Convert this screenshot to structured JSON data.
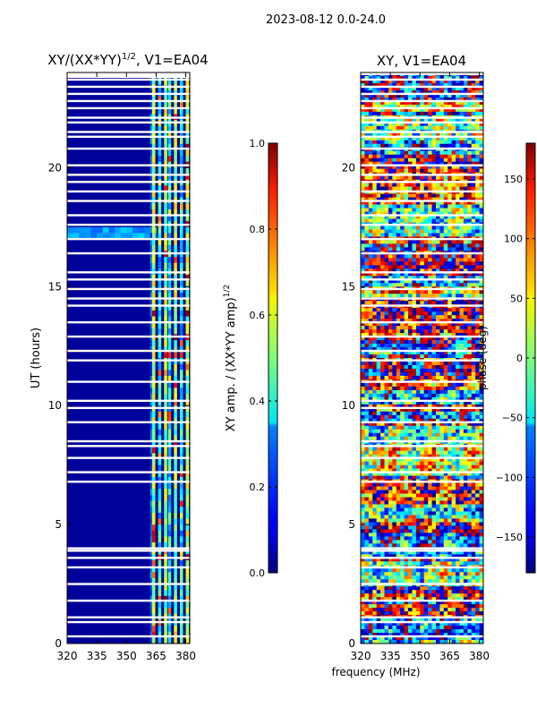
{
  "suptitle": "2023-08-12 0.0-24.0",
  "chart_data": [
    {
      "type": "heatmap",
      "title_main": "XY/(XX*YY)",
      "title_sup": "1/2",
      "title_tail": ", V1=EA04",
      "ylabel": "UT (hours)",
      "xlim": [
        320,
        382
      ],
      "ylim": [
        0,
        24
      ],
      "xticks": [
        320,
        335,
        350,
        365,
        380
      ],
      "yticks": [
        0,
        5,
        10,
        15,
        20
      ],
      "bright_channels": [
        363,
        366,
        369,
        371,
        374,
        377,
        380
      ],
      "gap_rows_hours": [
        0.3,
        0.9,
        1.1,
        1.8,
        2.5,
        3.2,
        3.6,
        3.9,
        4.0,
        6.8,
        7.2,
        7.8,
        8.3,
        8.5,
        9.3,
        9.9,
        10.2,
        11.0,
        11.9,
        12.3,
        12.9,
        13.5,
        14.2,
        14.5,
        14.9,
        15.3,
        15.6,
        16.4,
        17.0,
        17.6,
        18.0,
        18.6,
        19.0,
        19.4,
        19.7,
        20.1,
        20.8,
        21.3,
        21.5,
        21.9,
        22.1,
        22.5,
        22.8,
        23.1,
        23.4,
        23.7
      ],
      "colorbar": {
        "label_main": "XY amp. / (XX*YY amp)",
        "label_sup": "1/2",
        "min": 0.0,
        "max": 1.0,
        "ticks": [
          0.0,
          0.2,
          0.4,
          0.6,
          0.8,
          1.0
        ],
        "tick_labels": [
          "0.0",
          "0.2",
          "0.4",
          "0.6",
          "0.8",
          "1.0"
        ]
      }
    },
    {
      "type": "heatmap",
      "title": "XY, V1=EA04",
      "xlabel": "frequency (MHz)",
      "xlim": [
        320,
        382
      ],
      "ylim": [
        0,
        24
      ],
      "xticks": [
        320,
        335,
        350,
        365,
        380
      ],
      "yticks": [
        0,
        5,
        10,
        15,
        20
      ],
      "colorbar": {
        "label": "phase (deg)",
        "min": -180,
        "max": 180,
        "ticks": [
          -150,
          -100,
          -50,
          0,
          50,
          100,
          150
        ],
        "tick_labels": [
          "−150",
          "−100",
          "−50",
          "0",
          "50",
          "100",
          "150"
        ]
      }
    }
  ]
}
